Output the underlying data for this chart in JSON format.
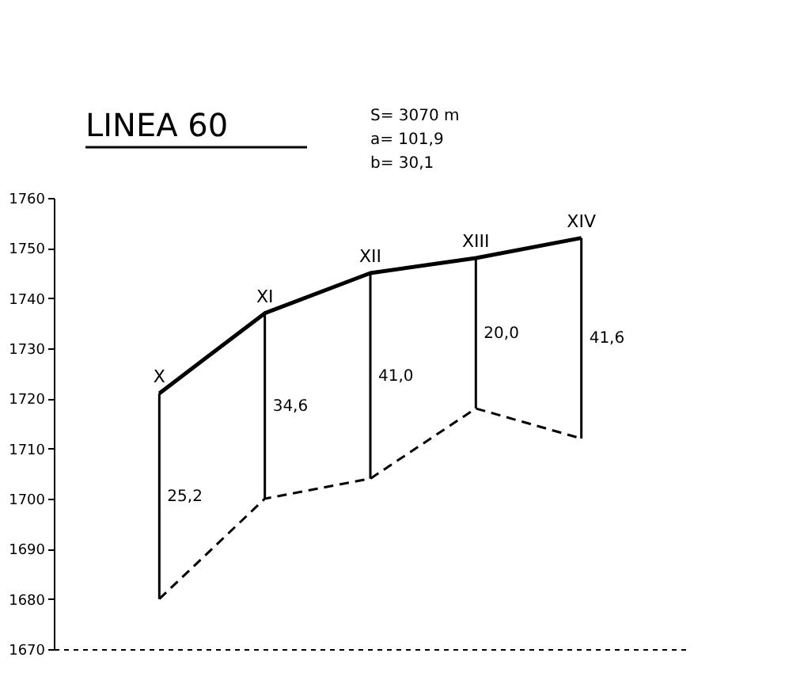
{
  "chart_data": {
    "type": "line",
    "title": "LINEA 60",
    "categories": [
      null,
      null,
      null,
      null,
      null
    ],
    "series": [
      {
        "color": "#000000",
        "line_style": "solid",
        "values": [
          1721,
          1737,
          1745,
          1748,
          1752
        ]
      },
      {
        "color": "#000000",
        "line_style": "dashed",
        "values": [
          1680,
          1700,
          1704,
          1718,
          1712
        ]
      }
    ],
    "ylim": [
      1670,
      1760
    ],
    "yticks": [
      1670,
      1680,
      1690,
      1700,
      1710,
      1720,
      1730,
      1740,
      1750,
      1760
    ],
    "tick_labels": "y",
    "grid": false,
    "annotations": [
      "S= 3070 m",
      "a= 101,9",
      "b= 30,1",
      "X",
      "25,2",
      "XI",
      "34,6",
      "XII",
      "41,0",
      "XIII",
      "20,0",
      "XIV",
      "41,6"
    ]
  }
}
